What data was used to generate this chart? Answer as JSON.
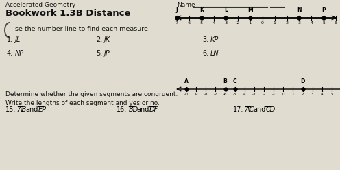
{
  "bg_color": "#e0ddd0",
  "title_small": "Accelerated Geometry",
  "title_big": "Bookwork 1.3B Distance",
  "numberline1_label": "se the number line to find each measure.",
  "nl1_points_ordered": [
    [
      "J",
      -7
    ],
    [
      "K",
      -5
    ],
    [
      "L",
      -3
    ],
    [
      "M",
      -1
    ],
    [
      "N",
      3
    ],
    [
      "P",
      5
    ]
  ],
  "nl1_range": [
    -7,
    6
  ],
  "nl1_ticks": [
    -7,
    -6,
    -5,
    -4,
    -3,
    -2,
    -1,
    0,
    1,
    2,
    3,
    4,
    5,
    6
  ],
  "nl1_tick_labels": [
    "-7",
    "-6",
    "-5",
    "-4",
    "-3",
    "-2",
    "-1",
    "0",
    "1",
    "2",
    "3",
    "4",
    "5",
    "6"
  ],
  "nl2_points_ordered": [
    [
      "A",
      -10
    ],
    [
      "B",
      -6
    ],
    [
      "C",
      -5
    ],
    [
      "D",
      2
    ]
  ],
  "nl2_range": [
    -11,
    6
  ],
  "nl2_ticks": [
    -10,
    -9,
    -8,
    -7,
    -6,
    -5,
    -4,
    -3,
    -2,
    -1,
    0,
    1,
    2,
    3,
    4,
    5
  ],
  "nl2_tick_labels": [
    "-10",
    "-9",
    "-8",
    "-7",
    "-6",
    "-5",
    "-4",
    "-3",
    "-2",
    "-1",
    "0",
    "1",
    "2",
    "3",
    "4",
    "5"
  ],
  "congruent_text1": "Determine whether the given segments are congruent.",
  "congruent_text2": "Write the lengths of each segment and yes or no."
}
